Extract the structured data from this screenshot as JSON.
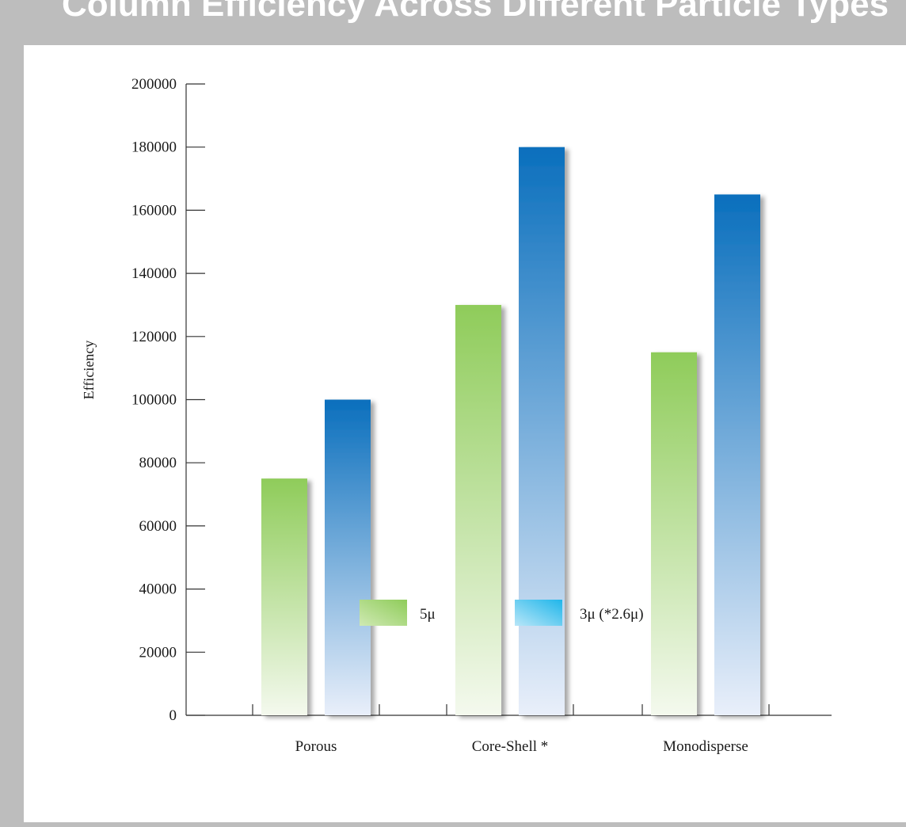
{
  "page": {
    "title": "Column Efficiency Across Different Particle Types"
  },
  "chart_data": {
    "type": "bar",
    "categories": [
      "Porous",
      "Core-Shell *",
      "Monodisperse"
    ],
    "series": [
      {
        "name": "5μ",
        "values": [
          75000,
          130000,
          115000
        ],
        "color_top": "#8fcc5a",
        "color_bottom": "#f4f9ee"
      },
      {
        "name": "3μ (*2.6μ)",
        "values": [
          100000,
          180000,
          165000
        ],
        "color_top": "#0a6fbd",
        "color_bottom": "#e9effa"
      }
    ],
    "legend_swatches": [
      {
        "color_top": "#8fcc5a",
        "color_bottom": "#cfe9b3"
      },
      {
        "color_top": "#1fb6ea",
        "color_bottom": "#b8e6f8"
      }
    ],
    "ylabel": "Efficiency",
    "xlabel": "",
    "ylim": [
      0,
      200000
    ],
    "yticks": [
      0,
      20000,
      40000,
      60000,
      80000,
      100000,
      120000,
      140000,
      160000,
      180000,
      200000
    ],
    "grid": false,
    "legend_position": "bottom"
  }
}
